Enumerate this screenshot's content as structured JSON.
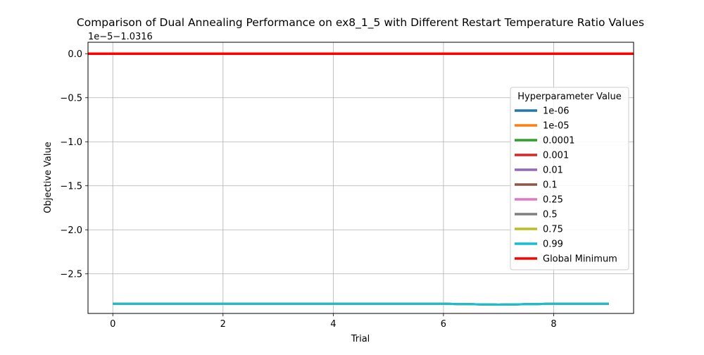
{
  "chart_data": {
    "type": "line",
    "title": "Comparison of Dual Annealing Performance on ex8_1_5 with Different Restart Temperature Ratio Values",
    "xlabel": "Trial",
    "ylabel": "Objective Value",
    "offset_label": "1e−5−1.0316",
    "xlim": [
      -0.45,
      9.45
    ],
    "ylim": [
      -2.95,
      0.13
    ],
    "x_ticks": [
      0,
      2,
      4,
      6,
      8
    ],
    "x_tick_labels": [
      "0",
      "2",
      "4",
      "6",
      "8"
    ],
    "y_ticks": [
      0.0,
      -0.5,
      -1.0,
      -1.5,
      -2.0,
      -2.5
    ],
    "y_tick_labels": [
      "0.0",
      "−0.5",
      "−1.0",
      "−1.5",
      "−2.0",
      "−2.5"
    ],
    "grid": true,
    "legend_title": "Hyperparameter Value",
    "legend_position": "center-right",
    "x": [
      0,
      1,
      2,
      3,
      4,
      5,
      6,
      7,
      8,
      9
    ],
    "series": [
      {
        "name": "1e-06",
        "color": "#1f77b4",
        "values": [
          -2.84,
          -2.84,
          -2.84,
          -2.84,
          -2.84,
          -2.84,
          -2.84,
          -2.85,
          -2.84,
          -2.84
        ]
      },
      {
        "name": "1e-05",
        "color": "#ff7f0e",
        "values": [
          -2.84,
          -2.84,
          -2.84,
          -2.84,
          -2.84,
          -2.84,
          -2.84,
          -2.85,
          -2.84,
          -2.84
        ]
      },
      {
        "name": "0.0001",
        "color": "#2ca02c",
        "values": [
          -2.84,
          -2.84,
          -2.84,
          -2.84,
          -2.84,
          -2.84,
          -2.84,
          -2.85,
          -2.84,
          -2.84
        ]
      },
      {
        "name": "0.001",
        "color": "#d62728",
        "values": [
          -2.84,
          -2.84,
          -2.84,
          -2.84,
          -2.84,
          -2.84,
          -2.84,
          -2.85,
          -2.84,
          -2.84
        ]
      },
      {
        "name": "0.01",
        "color": "#9467bd",
        "values": [
          -2.84,
          -2.84,
          -2.84,
          -2.84,
          -2.84,
          -2.84,
          -2.84,
          -2.85,
          -2.84,
          -2.84
        ]
      },
      {
        "name": "0.1",
        "color": "#8c564b",
        "values": [
          -2.84,
          -2.84,
          -2.84,
          -2.84,
          -2.84,
          -2.84,
          -2.84,
          -2.85,
          -2.84,
          -2.84
        ]
      },
      {
        "name": "0.25",
        "color": "#e377c2",
        "values": [
          -2.84,
          -2.84,
          -2.84,
          -2.84,
          -2.84,
          -2.84,
          -2.84,
          -2.85,
          -2.84,
          -2.84
        ]
      },
      {
        "name": "0.5",
        "color": "#7f7f7f",
        "values": [
          -2.84,
          -2.84,
          -2.84,
          -2.84,
          -2.84,
          -2.84,
          -2.84,
          -2.85,
          -2.84,
          -2.84
        ]
      },
      {
        "name": "0.75",
        "color": "#bcbd22",
        "values": [
          -2.84,
          -2.84,
          -2.84,
          -2.84,
          -2.84,
          -2.84,
          -2.84,
          -2.85,
          -2.84,
          -2.84
        ]
      },
      {
        "name": "0.99",
        "color": "#17becf",
        "values": [
          -2.84,
          -2.84,
          -2.84,
          -2.84,
          -2.84,
          -2.84,
          -2.84,
          -2.85,
          -2.84,
          -2.84
        ]
      }
    ],
    "global_minimum": {
      "name": "Global Minimum",
      "color": "#ff0000",
      "value": 0.0
    }
  }
}
